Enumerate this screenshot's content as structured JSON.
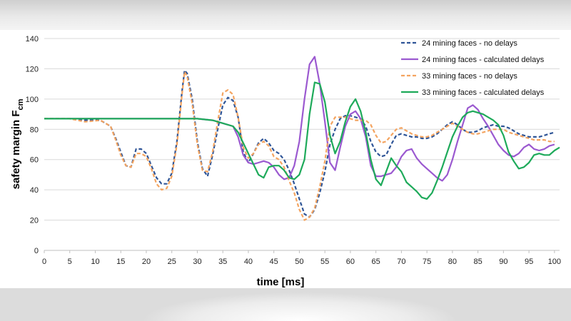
{
  "chart_data": {
    "type": "line",
    "xlabel": "time [ms]",
    "ylabel_main": "safety margin F",
    "ylabel_sub": "cm",
    "xlim": [
      0,
      101
    ],
    "ylim": [
      0,
      140
    ],
    "x_ticks": [
      0,
      5,
      10,
      15,
      20,
      25,
      30,
      35,
      40,
      45,
      50,
      55,
      60,
      65,
      70,
      75,
      80,
      85,
      90,
      95,
      100
    ],
    "y_ticks": [
      0,
      20,
      40,
      60,
      80,
      100,
      120,
      140
    ],
    "legend_position": "top-right",
    "series": [
      {
        "name": "24 mining faces - no delays",
        "color": "#2F5597",
        "dash": "dashed",
        "points": [
          [
            0,
            87
          ],
          [
            5,
            87
          ],
          [
            8,
            86
          ],
          [
            11,
            86
          ],
          [
            13,
            82
          ],
          [
            14,
            74
          ],
          [
            15,
            65
          ],
          [
            16,
            56
          ],
          [
            17,
            55
          ],
          [
            18,
            67
          ],
          [
            19,
            67
          ],
          [
            20,
            64
          ],
          [
            21,
            56
          ],
          [
            22,
            48
          ],
          [
            23,
            44
          ],
          [
            24,
            44
          ],
          [
            25,
            51
          ],
          [
            26,
            72
          ],
          [
            27,
            105
          ],
          [
            27.5,
            119
          ],
          [
            28,
            117
          ],
          [
            29,
            100
          ],
          [
            30,
            72
          ],
          [
            31,
            54
          ],
          [
            32,
            49
          ],
          [
            33,
            63
          ],
          [
            34,
            80
          ],
          [
            35,
            96
          ],
          [
            36,
            101
          ],
          [
            37,
            99
          ],
          [
            38,
            88
          ],
          [
            39,
            65
          ],
          [
            40,
            58
          ],
          [
            41,
            64
          ],
          [
            42,
            71
          ],
          [
            43,
            74
          ],
          [
            44,
            71
          ],
          [
            45,
            66
          ],
          [
            46,
            64
          ],
          [
            47,
            60
          ],
          [
            48,
            53
          ],
          [
            49,
            44
          ],
          [
            50,
            34
          ],
          [
            51,
            24
          ],
          [
            52,
            22
          ],
          [
            53,
            27
          ],
          [
            54,
            38
          ],
          [
            55,
            52
          ],
          [
            56,
            70
          ],
          [
            57,
            80
          ],
          [
            58,
            87
          ],
          [
            59,
            89
          ],
          [
            60,
            89
          ],
          [
            61,
            88
          ],
          [
            62,
            87
          ],
          [
            63,
            82
          ],
          [
            64,
            72
          ],
          [
            65,
            65
          ],
          [
            66,
            62
          ],
          [
            67,
            63
          ],
          [
            68,
            70
          ],
          [
            69,
            76
          ],
          [
            70,
            77
          ],
          [
            71,
            76
          ],
          [
            72,
            75
          ],
          [
            73,
            75
          ],
          [
            74,
            74
          ],
          [
            75,
            74
          ],
          [
            76,
            75
          ],
          [
            77,
            77
          ],
          [
            78,
            80
          ],
          [
            79,
            83
          ],
          [
            80,
            85
          ],
          [
            81,
            83
          ],
          [
            82,
            80
          ],
          [
            83,
            78
          ],
          [
            84,
            78
          ],
          [
            85,
            79
          ],
          [
            86,
            81
          ],
          [
            87,
            82
          ],
          [
            88,
            83
          ],
          [
            89,
            82
          ],
          [
            90,
            82
          ],
          [
            91,
            81
          ],
          [
            92,
            79
          ],
          [
            93,
            77
          ],
          [
            94,
            76
          ],
          [
            95,
            75
          ],
          [
            96,
            75
          ],
          [
            97,
            75
          ],
          [
            98,
            76
          ],
          [
            99,
            77
          ],
          [
            100,
            78
          ]
        ]
      },
      {
        "name": "24 mining faces - calculated delays",
        "color": "#9B59D0",
        "dash": "solid",
        "points": [
          [
            0,
            87
          ],
          [
            25,
            87
          ],
          [
            30,
            87
          ],
          [
            33,
            86
          ],
          [
            35,
            84
          ],
          [
            37,
            82
          ],
          [
            38,
            75
          ],
          [
            39,
            63
          ],
          [
            40,
            58
          ],
          [
            41,
            57
          ],
          [
            42,
            58
          ],
          [
            43,
            59
          ],
          [
            44,
            58
          ],
          [
            45,
            55
          ],
          [
            46,
            50
          ],
          [
            47,
            47
          ],
          [
            48,
            48
          ],
          [
            49,
            56
          ],
          [
            50,
            72
          ],
          [
            51,
            100
          ],
          [
            52,
            123
          ],
          [
            53,
            128
          ],
          [
            54,
            110
          ],
          [
            55,
            85
          ],
          [
            56,
            58
          ],
          [
            57,
            53
          ],
          [
            58,
            68
          ],
          [
            59,
            82
          ],
          [
            60,
            90
          ],
          [
            61,
            92
          ],
          [
            62,
            87
          ],
          [
            63,
            75
          ],
          [
            64,
            56
          ],
          [
            65,
            49
          ],
          [
            66,
            49
          ],
          [
            67,
            50
          ],
          [
            68,
            51
          ],
          [
            69,
            55
          ],
          [
            70,
            62
          ],
          [
            71,
            66
          ],
          [
            72,
            67
          ],
          [
            73,
            61
          ],
          [
            74,
            57
          ],
          [
            75,
            54
          ],
          [
            76,
            51
          ],
          [
            77,
            48
          ],
          [
            78,
            46
          ],
          [
            79,
            50
          ],
          [
            80,
            60
          ],
          [
            81,
            72
          ],
          [
            82,
            83
          ],
          [
            83,
            94
          ],
          [
            84,
            96
          ],
          [
            85,
            93
          ],
          [
            86,
            87
          ],
          [
            87,
            82
          ],
          [
            88,
            76
          ],
          [
            89,
            70
          ],
          [
            90,
            66
          ],
          [
            91,
            63
          ],
          [
            92,
            62
          ],
          [
            93,
            64
          ],
          [
            94,
            68
          ],
          [
            95,
            70
          ],
          [
            96,
            67
          ],
          [
            97,
            66
          ],
          [
            98,
            67
          ],
          [
            99,
            69
          ],
          [
            100,
            70
          ]
        ]
      },
      {
        "name": "33 mining faces - no delays",
        "color": "#F4A460",
        "dash": "dashed",
        "points": [
          [
            0,
            87
          ],
          [
            5,
            87
          ],
          [
            8,
            85
          ],
          [
            11,
            86
          ],
          [
            13,
            82
          ],
          [
            14,
            73
          ],
          [
            15,
            63
          ],
          [
            16,
            56
          ],
          [
            17,
            55
          ],
          [
            18,
            64
          ],
          [
            19,
            64
          ],
          [
            20,
            62
          ],
          [
            21,
            54
          ],
          [
            22,
            44
          ],
          [
            23,
            40
          ],
          [
            24,
            41
          ],
          [
            25,
            49
          ],
          [
            26,
            70
          ],
          [
            27,
            103
          ],
          [
            27.5,
            118
          ],
          [
            28,
            115
          ],
          [
            29,
            97
          ],
          [
            30,
            70
          ],
          [
            31,
            53
          ],
          [
            32,
            52
          ],
          [
            33,
            65
          ],
          [
            34,
            85
          ],
          [
            35,
            104
          ],
          [
            36,
            106
          ],
          [
            37,
            103
          ],
          [
            38,
            88
          ],
          [
            39,
            68
          ],
          [
            40,
            61
          ],
          [
            41,
            64
          ],
          [
            42,
            70
          ],
          [
            43,
            72
          ],
          [
            44,
            69
          ],
          [
            45,
            62
          ],
          [
            46,
            60
          ],
          [
            47,
            55
          ],
          [
            48,
            46
          ],
          [
            49,
            38
          ],
          [
            50,
            27
          ],
          [
            51,
            20
          ],
          [
            52,
            22
          ],
          [
            53,
            28
          ],
          [
            54,
            42
          ],
          [
            55,
            59
          ],
          [
            56,
            82
          ],
          [
            57,
            88
          ],
          [
            58,
            88
          ],
          [
            59,
            88
          ],
          [
            60,
            87
          ],
          [
            61,
            86
          ],
          [
            62,
            86
          ],
          [
            63,
            86
          ],
          [
            64,
            83
          ],
          [
            65,
            76
          ],
          [
            66,
            71
          ],
          [
            67,
            72
          ],
          [
            68,
            76
          ],
          [
            69,
            80
          ],
          [
            70,
            81
          ],
          [
            71,
            79
          ],
          [
            72,
            77
          ],
          [
            73,
            76
          ],
          [
            74,
            75
          ],
          [
            75,
            75
          ],
          [
            76,
            76
          ],
          [
            77,
            78
          ],
          [
            78,
            80
          ],
          [
            79,
            82
          ],
          [
            80,
            84
          ],
          [
            81,
            82
          ],
          [
            82,
            80
          ],
          [
            83,
            78
          ],
          [
            84,
            77
          ],
          [
            85,
            77
          ],
          [
            86,
            78
          ],
          [
            87,
            79
          ],
          [
            88,
            80
          ],
          [
            89,
            80
          ],
          [
            90,
            80
          ],
          [
            91,
            78
          ],
          [
            92,
            77
          ],
          [
            93,
            76
          ],
          [
            94,
            75
          ],
          [
            95,
            74
          ],
          [
            96,
            73
          ],
          [
            97,
            73
          ],
          [
            98,
            73
          ],
          [
            99,
            72
          ],
          [
            100,
            72
          ]
        ]
      },
      {
        "name": "33 mining faces - calculated delays",
        "color": "#1EAA5A",
        "dash": "solid",
        "points": [
          [
            0,
            87
          ],
          [
            25,
            87
          ],
          [
            30,
            87
          ],
          [
            33,
            86
          ],
          [
            35,
            84
          ],
          [
            37,
            82
          ],
          [
            38,
            78
          ],
          [
            39,
            71
          ],
          [
            40,
            64
          ],
          [
            41,
            57
          ],
          [
            42,
            50
          ],
          [
            43,
            48
          ],
          [
            44,
            55
          ],
          [
            45,
            56
          ],
          [
            46,
            56
          ],
          [
            47,
            53
          ],
          [
            48,
            48
          ],
          [
            49,
            47
          ],
          [
            50,
            50
          ],
          [
            51,
            60
          ],
          [
            52,
            90
          ],
          [
            53,
            111
          ],
          [
            54,
            110
          ],
          [
            55,
            98
          ],
          [
            56,
            76
          ],
          [
            57,
            64
          ],
          [
            58,
            72
          ],
          [
            59,
            85
          ],
          [
            60,
            95
          ],
          [
            61,
            100
          ],
          [
            62,
            92
          ],
          [
            63,
            78
          ],
          [
            64,
            60
          ],
          [
            65,
            47
          ],
          [
            66,
            43
          ],
          [
            67,
            52
          ],
          [
            68,
            61
          ],
          [
            69,
            56
          ],
          [
            70,
            52
          ],
          [
            71,
            45
          ],
          [
            72,
            42
          ],
          [
            73,
            39
          ],
          [
            74,
            35
          ],
          [
            75,
            34
          ],
          [
            76,
            38
          ],
          [
            77,
            46
          ],
          [
            78,
            55
          ],
          [
            79,
            65
          ],
          [
            80,
            75
          ],
          [
            81,
            82
          ],
          [
            82,
            88
          ],
          [
            83,
            91
          ],
          [
            84,
            92
          ],
          [
            85,
            91
          ],
          [
            86,
            90
          ],
          [
            87,
            88
          ],
          [
            88,
            86
          ],
          [
            89,
            83
          ],
          [
            90,
            76
          ],
          [
            91,
            65
          ],
          [
            92,
            59
          ],
          [
            93,
            54
          ],
          [
            94,
            55
          ],
          [
            95,
            58
          ],
          [
            96,
            63
          ],
          [
            97,
            64
          ],
          [
            98,
            63
          ],
          [
            99,
            63
          ],
          [
            100,
            66
          ],
          [
            101,
            68
          ]
        ]
      }
    ]
  }
}
